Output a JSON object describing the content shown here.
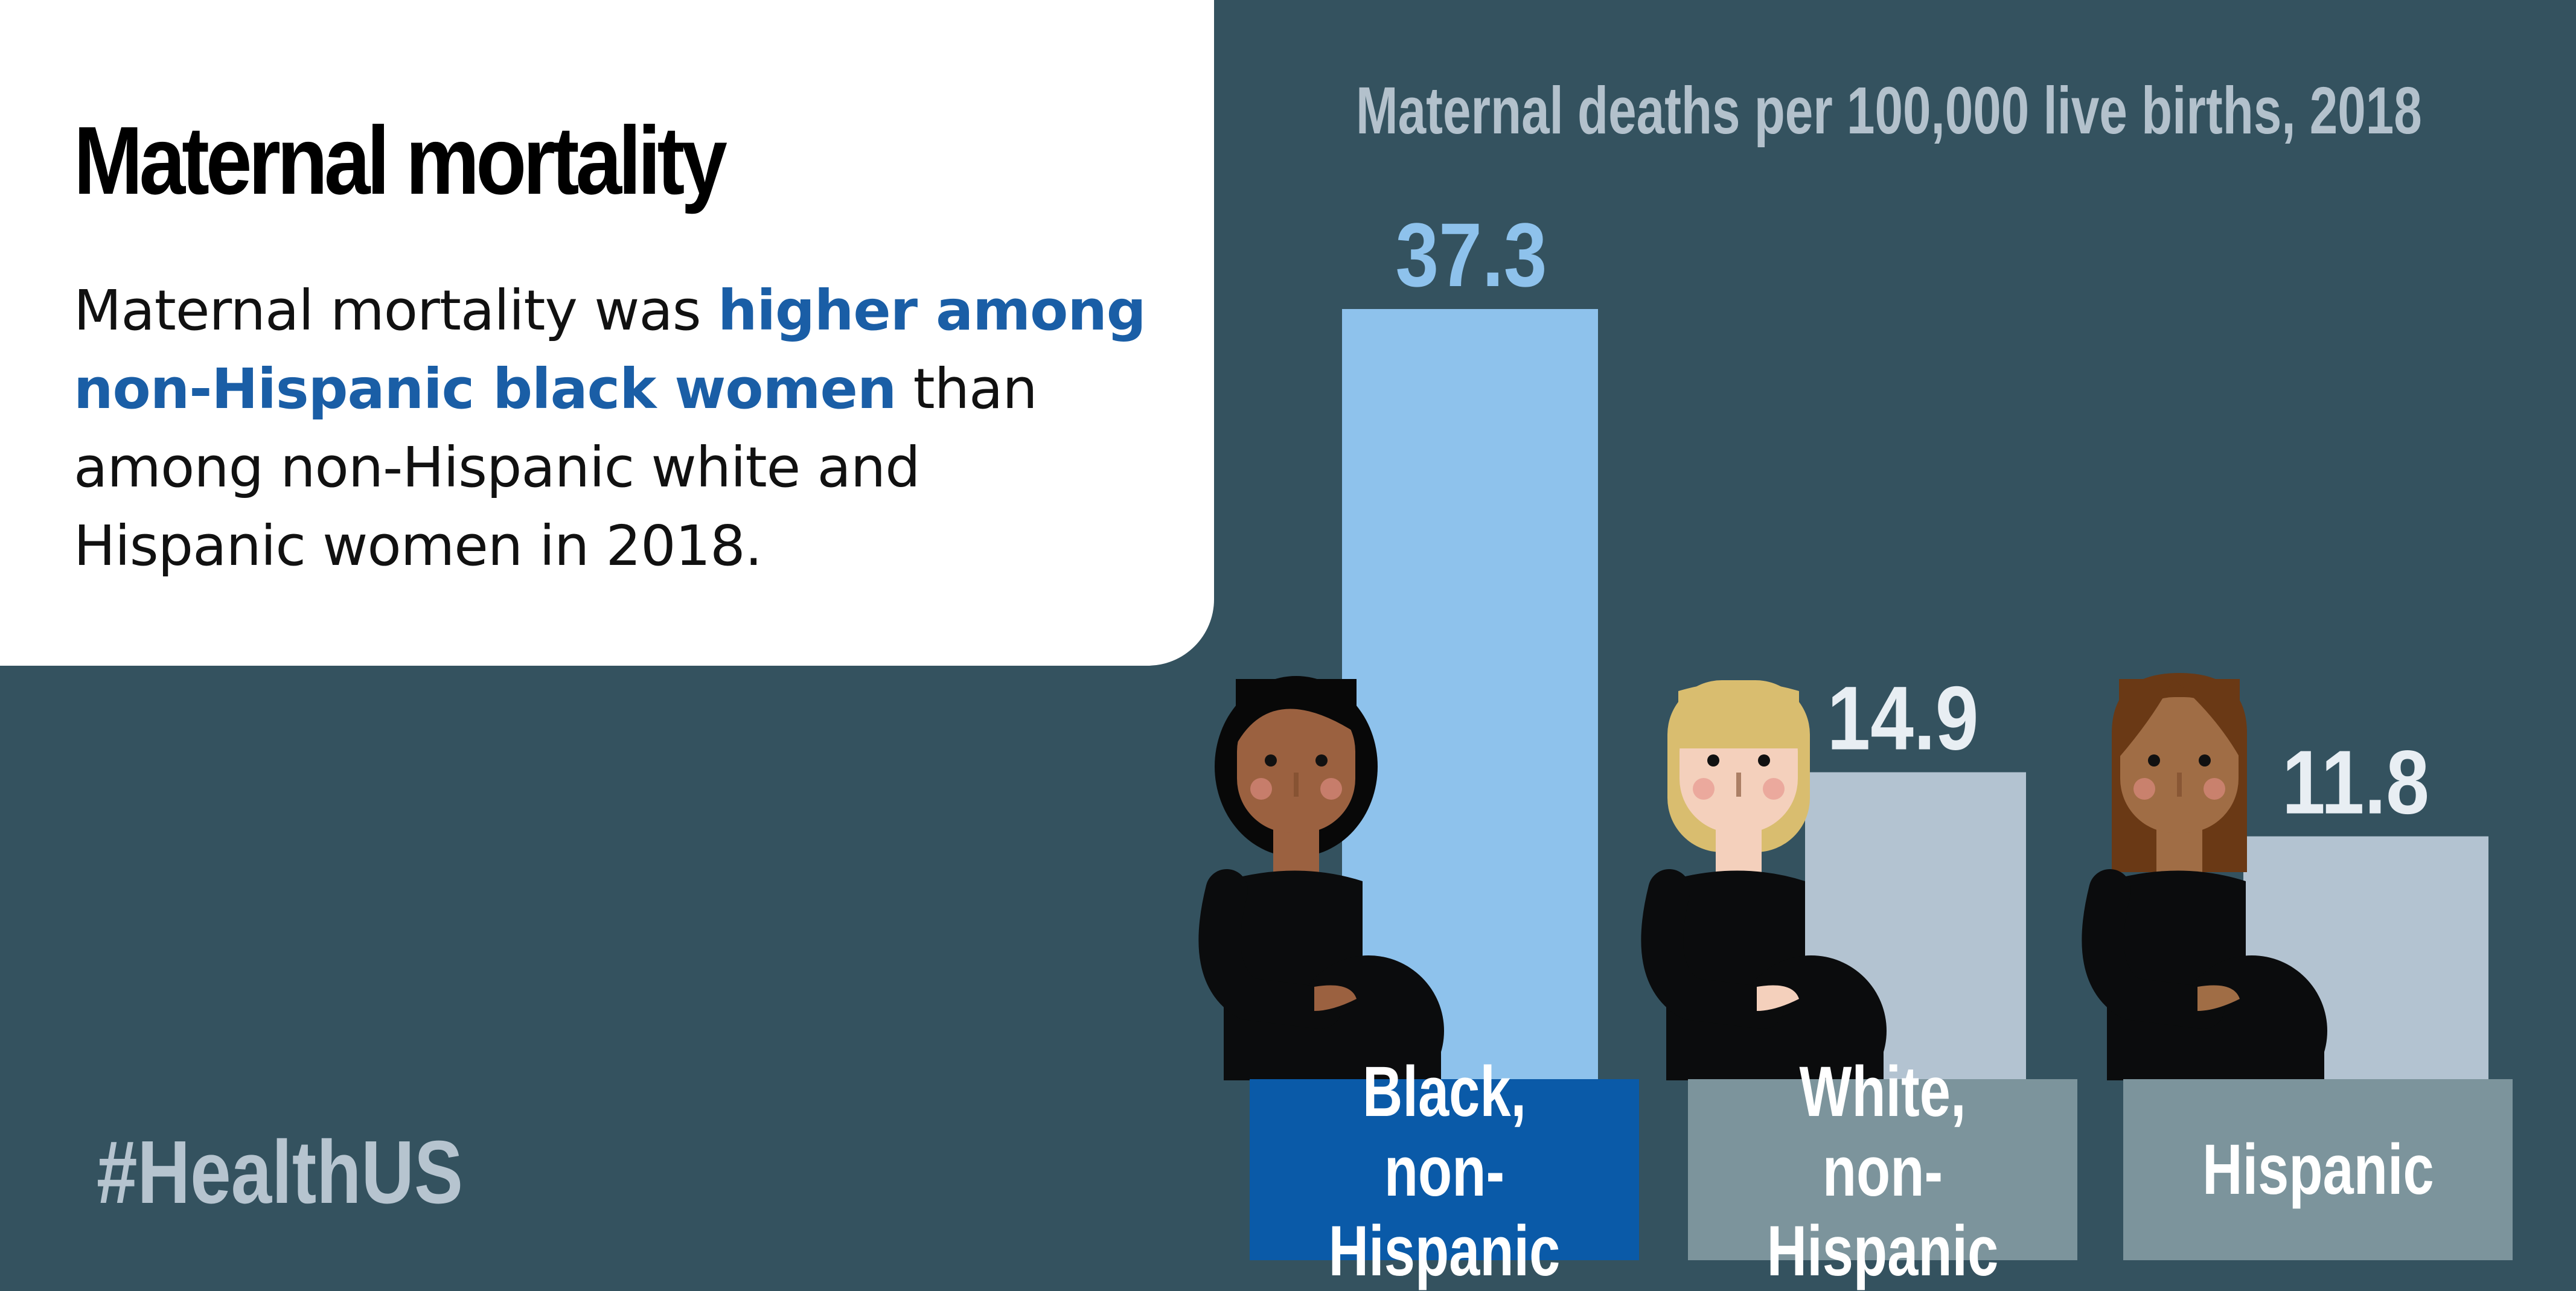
{
  "panel": {
    "title": "Maternal mortality",
    "desc_part1": "Maternal mortality was ",
    "desc_highlight": "higher among non-Hispanic black women",
    "desc_part2": " than among non-Hispanic white and Hispanic women in 2018."
  },
  "hashtag": "#HealthUS",
  "colors": {
    "background": "#34525f",
    "highlight_bar": "#8ec2ec",
    "other_bars": "#b3c3d1",
    "highlight_category": "#0a5aa8",
    "other_category": "#7c949c",
    "highlight_text": "#1a5ea6"
  },
  "chart_data": {
    "type": "bar",
    "title": "Maternal deaths per 100,000 live births, 2018",
    "categories": [
      "Black,\nnon-Hispanic",
      "White,\nnon-Hispanic",
      "Hispanic"
    ],
    "values": [
      37.3,
      14.9,
      11.8
    ],
    "value_labels": [
      "37.3",
      "14.9",
      "11.8"
    ],
    "highlighted_category": "Black,\nnon-Hispanic",
    "xlabel": "",
    "ylabel": "",
    "grid": false,
    "legend": "none",
    "icons": [
      "pregnant-woman-black-icon",
      "pregnant-woman-white-icon",
      "pregnant-woman-hispanic-icon"
    ]
  }
}
